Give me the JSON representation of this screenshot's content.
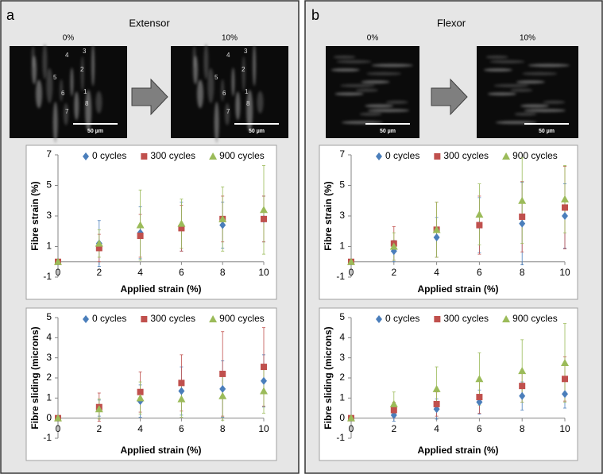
{
  "panels": [
    {
      "label": "a",
      "title": "Extensor",
      "images": [
        {
          "label": "0%",
          "scale_bar": "50 µm"
        },
        {
          "label": "10%",
          "scale_bar": "50 µm"
        }
      ],
      "fibres": [
        "4",
        "3",
        "2",
        "5",
        "6",
        "1",
        "8",
        "7"
      ]
    },
    {
      "label": "b",
      "title": "Flexor",
      "images": [
        {
          "label": "0%",
          "scale_bar": "50 µm"
        },
        {
          "label": "10%",
          "scale_bar": "50 µm"
        }
      ]
    }
  ],
  "chart_data": [
    {
      "type": "scatter",
      "x_label": "Applied strain (%)",
      "y_label": "Fibre strain (%)",
      "x": [
        0,
        2,
        4,
        6,
        8,
        10
      ],
      "xlim": [
        0,
        10
      ],
      "xticks": [
        0,
        2,
        4,
        6,
        8,
        10
      ],
      "ylim": [
        -1,
        7
      ],
      "yticks": [
        -1,
        1,
        3,
        5,
        7
      ],
      "grid": false,
      "legend": "top",
      "series": [
        {
          "name": "0 cycles",
          "color": "#4a7ebb",
          "marker": "diamond",
          "values": [
            0,
            1.2,
            1.9,
            2.3,
            2.4,
            2.8
          ],
          "errors": [
            0,
            1.5,
            1.7,
            1.6,
            1.5,
            1.5
          ]
        },
        {
          "name": "300 cycles",
          "color": "#c0504d",
          "marker": "square",
          "values": [
            0,
            0.9,
            1.7,
            2.2,
            2.8,
            2.8
          ],
          "errors": [
            0,
            0.9,
            1.4,
            1.5,
            1.5,
            1.5
          ]
        },
        {
          "name": "900 cycles",
          "color": "#9bbb59",
          "marker": "triangle",
          "values": [
            0,
            1.2,
            2.4,
            2.5,
            2.8,
            3.4
          ],
          "errors": [
            0,
            0.9,
            2.3,
            1.6,
            2.1,
            2.9
          ]
        }
      ]
    },
    {
      "type": "scatter",
      "x_label": "Applied strain (%)",
      "y_label": "Fibre sliding (microns)",
      "x": [
        0,
        2,
        4,
        6,
        8,
        10
      ],
      "xlim": [
        0,
        10
      ],
      "xticks": [
        0,
        2,
        4,
        6,
        8,
        10
      ],
      "ylim": [
        -1,
        5
      ],
      "yticks": [
        -1,
        0,
        1,
        2,
        3,
        4,
        5
      ],
      "grid": false,
      "legend": "top",
      "series": [
        {
          "name": "0 cycles",
          "color": "#4a7ebb",
          "marker": "diamond",
          "values": [
            0,
            0.5,
            0.85,
            1.35,
            1.45,
            1.85
          ],
          "errors": [
            0,
            0.4,
            0.8,
            1.2,
            1.4,
            1.3
          ]
        },
        {
          "name": "300 cycles",
          "color": "#c0504d",
          "marker": "square",
          "values": [
            0,
            0.55,
            1.3,
            1.75,
            2.2,
            2.55
          ],
          "errors": [
            0,
            0.7,
            1.0,
            1.4,
            2.1,
            1.95
          ]
        },
        {
          "name": "900 cycles",
          "color": "#9bbb59",
          "marker": "triangle",
          "values": [
            0,
            0.45,
            1.0,
            0.95,
            1.1,
            1.35
          ],
          "errors": [
            0,
            0.5,
            0.8,
            0.9,
            1.2,
            1.1
          ]
        }
      ]
    },
    {
      "type": "scatter",
      "x_label": "Applied strain (%)",
      "y_label": "Fibre strain (%)",
      "x": [
        0,
        2,
        4,
        6,
        8,
        10
      ],
      "xlim": [
        0,
        10
      ],
      "xticks": [
        0,
        2,
        4,
        6,
        8,
        10
      ],
      "ylim": [
        -1,
        7
      ],
      "yticks": [
        -1,
        1,
        3,
        5,
        7
      ],
      "grid": false,
      "legend": "top",
      "series": [
        {
          "name": "0 cycles",
          "color": "#4a7ebb",
          "marker": "diamond",
          "values": [
            0,
            0.7,
            1.6,
            2.4,
            2.5,
            3.0
          ],
          "errors": [
            0,
            0.7,
            1.3,
            1.8,
            2.7,
            2.1
          ]
        },
        {
          "name": "300 cycles",
          "color": "#c0504d",
          "marker": "square",
          "values": [
            0,
            1.2,
            2.1,
            2.4,
            2.95,
            3.55
          ],
          "errors": [
            0,
            1.1,
            1.8,
            1.9,
            2.3,
            2.7
          ]
        },
        {
          "name": "900 cycles",
          "color": "#9bbb59",
          "marker": "triangle",
          "values": [
            0,
            1.0,
            2.1,
            3.1,
            4.0,
            4.1
          ],
          "errors": [
            0,
            0.9,
            1.8,
            2.0,
            2.8,
            2.2
          ]
        }
      ]
    },
    {
      "type": "scatter",
      "x_label": "Applied strain (%)",
      "y_label": "Fibre sliding (microns)",
      "x": [
        0,
        2,
        4,
        6,
        8,
        10
      ],
      "xlim": [
        0,
        10
      ],
      "xticks": [
        0,
        2,
        4,
        6,
        8,
        10
      ],
      "ylim": [
        -1,
        5
      ],
      "yticks": [
        -1,
        0,
        1,
        2,
        3,
        4,
        5
      ],
      "grid": false,
      "legend": "top",
      "series": [
        {
          "name": "0 cycles",
          "color": "#4a7ebb",
          "marker": "diamond",
          "values": [
            0,
            0.15,
            0.45,
            0.8,
            1.1,
            1.2
          ],
          "errors": [
            0,
            0.3,
            0.5,
            0.6,
            0.7,
            0.7
          ]
        },
        {
          "name": "300 cycles",
          "color": "#c0504d",
          "marker": "square",
          "values": [
            0,
            0.4,
            0.7,
            1.05,
            1.6,
            1.95
          ],
          "errors": [
            0,
            0.4,
            0.6,
            0.8,
            0.8,
            1.1
          ]
        },
        {
          "name": "900 cycles",
          "color": "#9bbb59",
          "marker": "triangle",
          "values": [
            0,
            0.7,
            1.45,
            1.95,
            2.35,
            2.75
          ],
          "errors": [
            0,
            0.6,
            1.1,
            1.3,
            1.55,
            1.95
          ]
        }
      ]
    }
  ]
}
